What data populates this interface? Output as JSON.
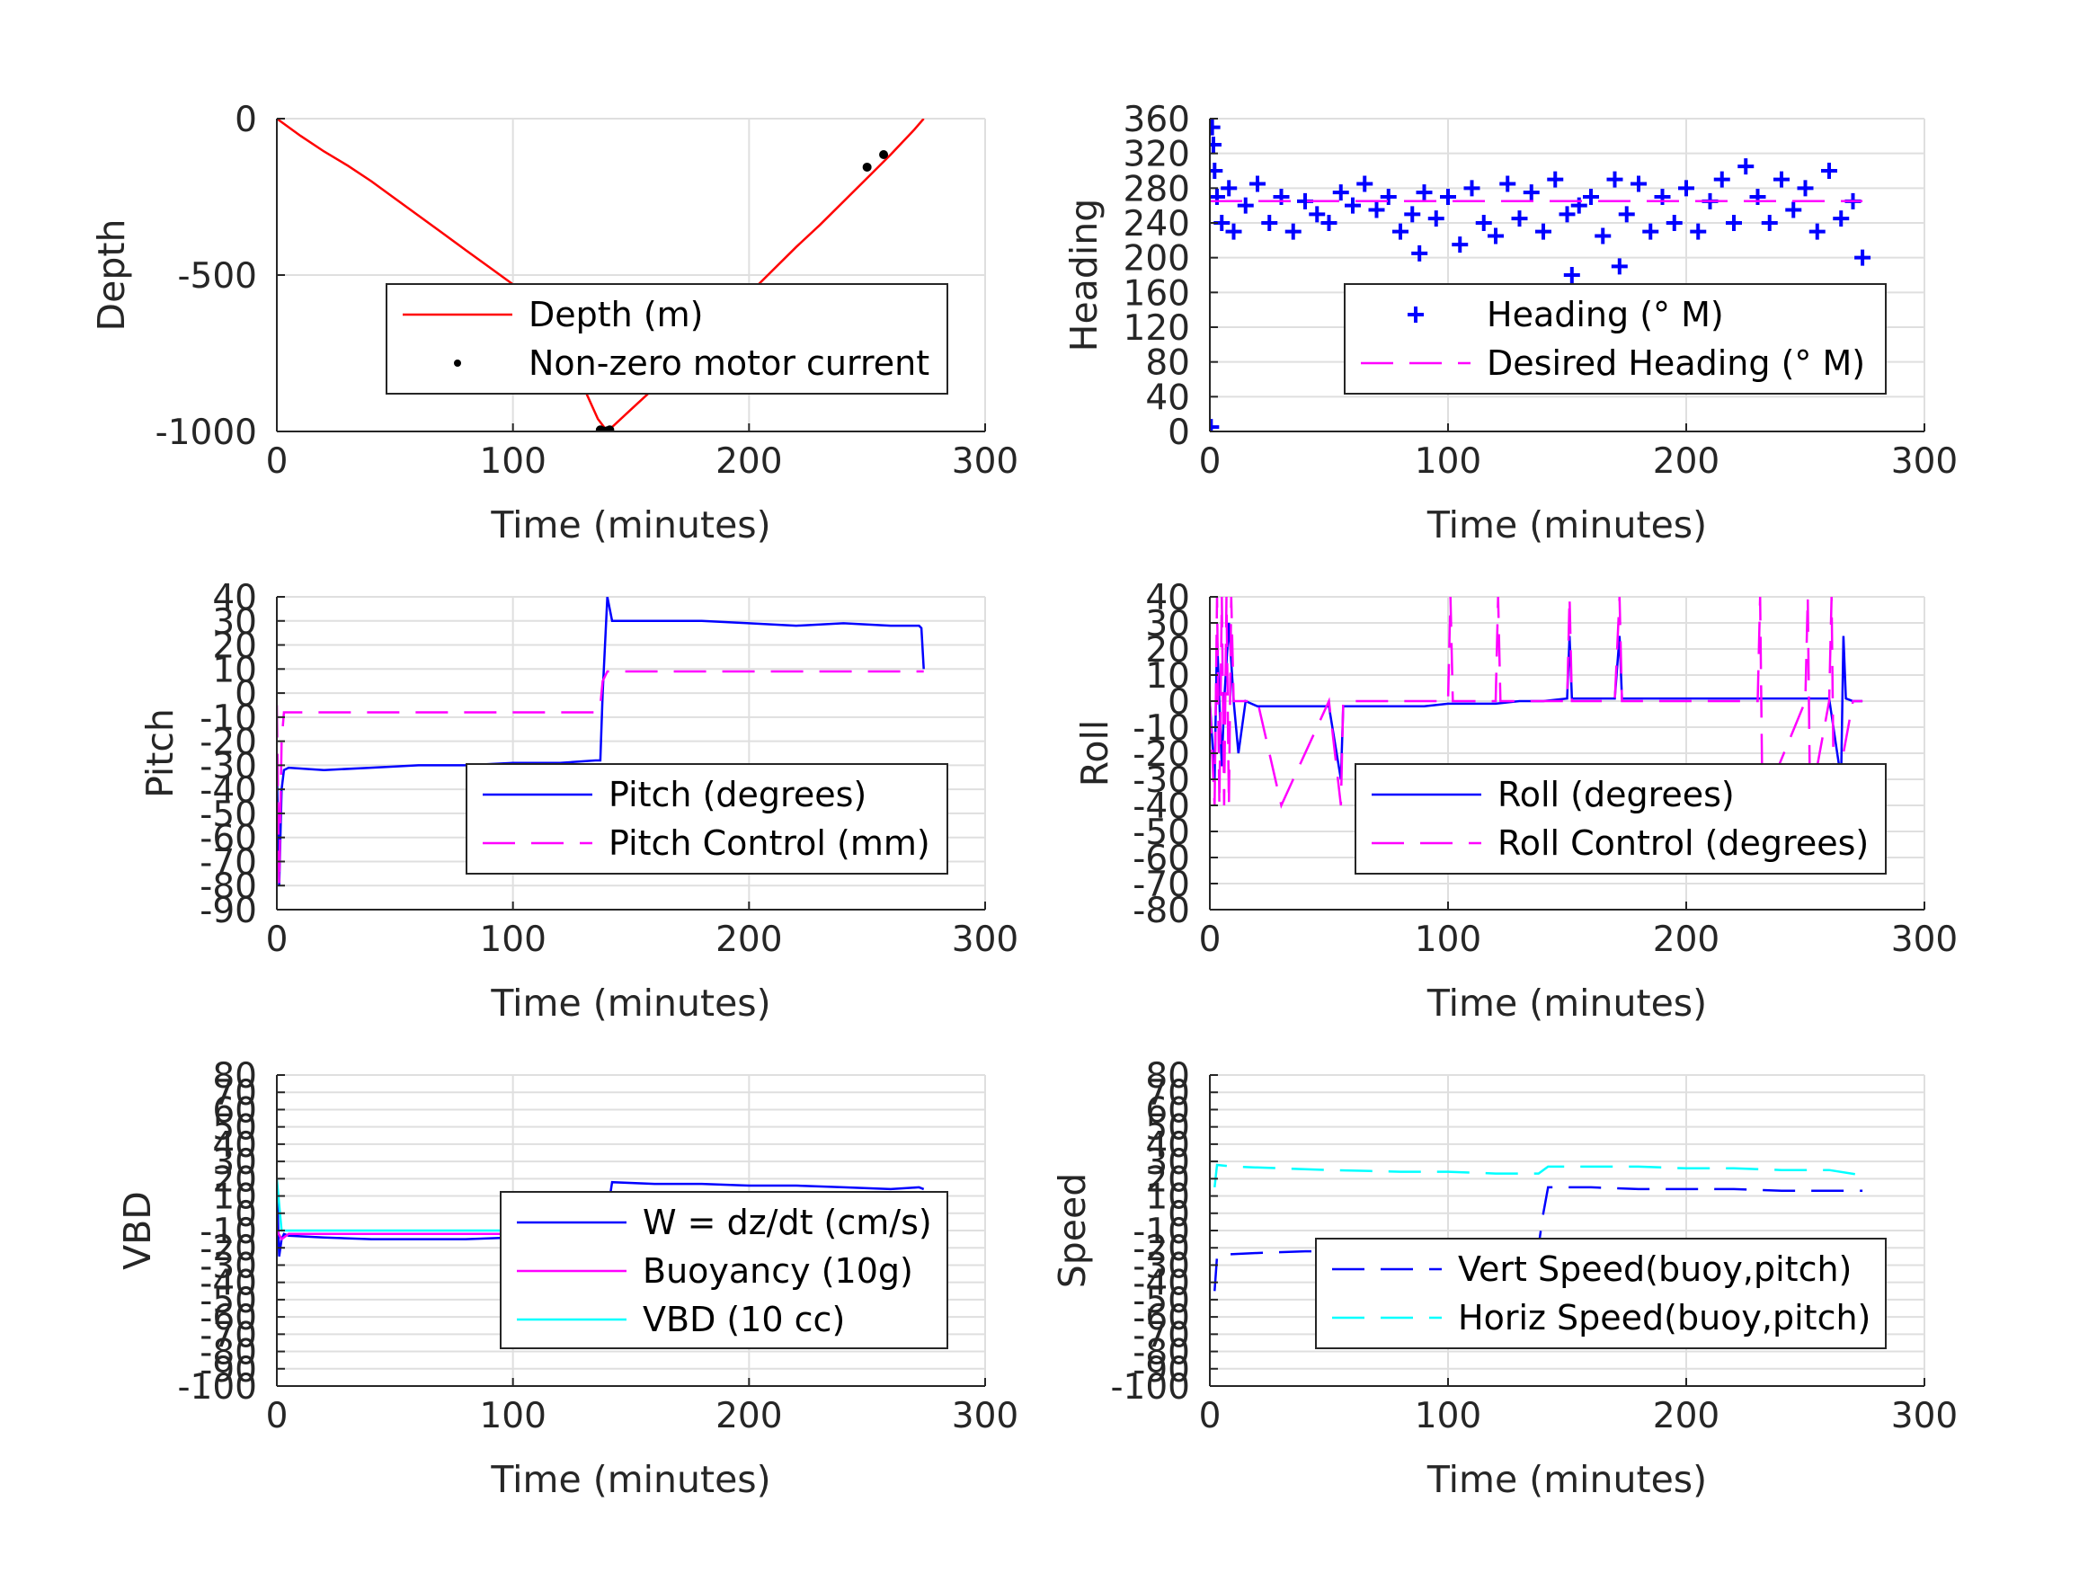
{
  "charts": [
    {
      "id": "depth",
      "ylabel": "Depth",
      "xlabel": "Time (minutes)",
      "xlim": [
        0,
        300
      ],
      "ylim": [
        -1000,
        0
      ],
      "xticks": [
        0,
        100,
        200,
        300
      ],
      "yticks": [
        -1000,
        -500,
        0
      ],
      "legend": [
        {
          "label": "Depth (m)",
          "style": "solid",
          "color": "#ff0000"
        },
        {
          "label": "Non-zero motor current",
          "style": "dot",
          "color": "#000000"
        }
      ]
    },
    {
      "id": "heading",
      "ylabel": "Heading",
      "xlabel": "Time (minutes)",
      "xlim": [
        0,
        300
      ],
      "ylim": [
        0,
        360
      ],
      "xticks": [
        0,
        100,
        200,
        300
      ],
      "yticks": [
        0,
        40,
        80,
        120,
        160,
        200,
        240,
        280,
        320,
        360
      ],
      "legend": [
        {
          "label": "Heading (° M)",
          "style": "plus",
          "color": "#0000ff"
        },
        {
          "label": "Desired Heading (° M)",
          "style": "dashed",
          "color": "#ff00ff"
        }
      ]
    },
    {
      "id": "pitch",
      "ylabel": "Pitch",
      "xlabel": "Time (minutes)",
      "xlim": [
        0,
        300
      ],
      "ylim": [
        -90,
        40
      ],
      "xticks": [
        0,
        100,
        200,
        300
      ],
      "yticks": [
        -90,
        -80,
        -70,
        -60,
        -50,
        -40,
        -30,
        -20,
        -10,
        0,
        10,
        20,
        30,
        40
      ],
      "legend": [
        {
          "label": "Pitch (degrees)",
          "style": "solid",
          "color": "#0000ff"
        },
        {
          "label": "Pitch Control (mm)",
          "style": "dashed",
          "color": "#ff00ff"
        }
      ]
    },
    {
      "id": "roll",
      "ylabel": "Roll",
      "xlabel": "Time (minutes)",
      "xlim": [
        0,
        300
      ],
      "ylim": [
        -80,
        40
      ],
      "xticks": [
        0,
        100,
        200,
        300
      ],
      "yticks": [
        -80,
        -70,
        -60,
        -50,
        -40,
        -30,
        -20,
        -10,
        0,
        10,
        20,
        30,
        40
      ],
      "legend": [
        {
          "label": "Roll (degrees)",
          "style": "solid",
          "color": "#0000ff"
        },
        {
          "label": "Roll Control (degrees)",
          "style": "dashed",
          "color": "#ff00ff"
        }
      ]
    },
    {
      "id": "vbd",
      "ylabel": "VBD",
      "xlabel": "Time (minutes)",
      "xlim": [
        0,
        300
      ],
      "ylim": [
        -100,
        80
      ],
      "xticks": [
        0,
        100,
        200,
        300
      ],
      "yticks": [
        -100,
        -90,
        -80,
        -70,
        -60,
        -50,
        -40,
        -30,
        -20,
        -10,
        0,
        10,
        20,
        30,
        40,
        50,
        60,
        70,
        80
      ],
      "legend": [
        {
          "label": "W = dz/dt (cm/s)",
          "style": "solid",
          "color": "#0000ff"
        },
        {
          "label": "Buoyancy (10g)",
          "style": "solid",
          "color": "#ff00ff"
        },
        {
          "label": "VBD (10 cc)",
          "style": "solid",
          "color": "#00ffff"
        }
      ]
    },
    {
      "id": "speed",
      "ylabel": "Speed",
      "xlabel": "Time (minutes)",
      "xlim": [
        0,
        300
      ],
      "ylim": [
        -100,
        80
      ],
      "xticks": [
        0,
        100,
        200,
        300
      ],
      "yticks": [
        -100,
        -90,
        -80,
        -70,
        -60,
        -50,
        -40,
        -30,
        -20,
        -10,
        0,
        10,
        20,
        30,
        40,
        50,
        60,
        70,
        80
      ],
      "legend": [
        {
          "label": "Vert Speed(buoy,pitch)",
          "style": "dashed",
          "color": "#0000ff"
        },
        {
          "label": "Horiz Speed(buoy,pitch)",
          "style": "dashed",
          "color": "#00ffff"
        }
      ]
    }
  ],
  "chart_data": [
    {
      "type": "line",
      "ylabel": "Depth",
      "xlabel": "Time (minutes)",
      "xlim": [
        0,
        300
      ],
      "ylim": [
        -1000,
        0
      ],
      "grid": true,
      "legend_position": "lower-right",
      "series": [
        {
          "name": "Depth (m)",
          "color": "#ff0000",
          "style": "solid",
          "x": [
            0,
            10,
            20,
            30,
            40,
            50,
            60,
            70,
            80,
            90,
            100,
            110,
            120,
            130,
            136,
            140,
            150,
            160,
            170,
            180,
            190,
            200,
            210,
            220,
            230,
            240,
            250,
            260,
            270,
            274
          ],
          "y": [
            0,
            -55,
            -105,
            -150,
            -200,
            -255,
            -310,
            -365,
            -420,
            -475,
            -530,
            -590,
            -700,
            -860,
            -960,
            -1000,
            -930,
            -860,
            -790,
            -715,
            -640,
            -560,
            -485,
            -410,
            -340,
            -265,
            -190,
            -115,
            -35,
            0
          ]
        },
        {
          "name": "Non-zero motor current",
          "color": "#000000",
          "style": "dot",
          "x": [
            137,
            138,
            139,
            140,
            141,
            250,
            257
          ],
          "y": [
            -995,
            -998,
            -1000,
            -998,
            -995,
            -155,
            -115
          ]
        }
      ]
    },
    {
      "type": "scatter",
      "ylabel": "Heading",
      "xlabel": "Time (minutes)",
      "xlim": [
        0,
        300
      ],
      "ylim": [
        0,
        360
      ],
      "grid": true,
      "legend_position": "lower-right",
      "series": [
        {
          "name": "Heading (° M)",
          "color": "#0000ff",
          "marker": "+",
          "x": [
            0.5,
            1,
            1.5,
            2,
            3,
            5,
            8,
            10,
            15,
            20,
            25,
            30,
            35,
            40,
            45,
            50,
            55,
            60,
            65,
            70,
            75,
            80,
            85,
            88,
            90,
            95,
            100,
            105,
            110,
            115,
            120,
            125,
            130,
            135,
            140,
            145,
            150,
            152,
            155,
            160,
            165,
            170,
            172,
            175,
            180,
            185,
            190,
            195,
            200,
            205,
            210,
            215,
            220,
            225,
            230,
            235,
            240,
            245,
            250,
            255,
            260,
            265,
            270,
            274
          ],
          "y": [
            5,
            350,
            330,
            300,
            270,
            240,
            280,
            230,
            260,
            285,
            240,
            270,
            230,
            265,
            250,
            240,
            275,
            260,
            285,
            255,
            270,
            230,
            250,
            205,
            275,
            245,
            270,
            215,
            280,
            240,
            225,
            285,
            245,
            275,
            230,
            290,
            250,
            180,
            260,
            270,
            225,
            290,
            190,
            250,
            285,
            230,
            270,
            240,
            280,
            230,
            265,
            290,
            240,
            305,
            270,
            240,
            290,
            255,
            280,
            230,
            300,
            245,
            265,
            200
          ]
        },
        {
          "name": "Desired Heading (° M)",
          "color": "#ff00ff",
          "style": "dashed",
          "x": [
            0,
            274
          ],
          "y": [
            265,
            265
          ]
        }
      ]
    },
    {
      "type": "line",
      "ylabel": "Pitch",
      "xlabel": "Time (minutes)",
      "xlim": [
        0,
        300
      ],
      "ylim": [
        -90,
        40
      ],
      "grid": true,
      "legend_position": "lower-right",
      "series": [
        {
          "name": "Pitch (degrees)",
          "color": "#0000ff",
          "style": "solid",
          "x": [
            0,
            1,
            2,
            3,
            5,
            20,
            40,
            60,
            80,
            100,
            120,
            135,
            137,
            138,
            139,
            140,
            142,
            160,
            180,
            200,
            220,
            240,
            260,
            272,
            273,
            274
          ],
          "y": [
            -30,
            -80,
            -40,
            -32,
            -31,
            -32,
            -31,
            -30,
            -30,
            -29,
            -29,
            -28,
            -28,
            0,
            20,
            40,
            30,
            30,
            30,
            29,
            28,
            29,
            28,
            28,
            27,
            10
          ]
        },
        {
          "name": "Pitch Control (mm)",
          "color": "#ff00ff",
          "style": "dashed",
          "x": [
            0,
            1,
            2,
            3,
            136,
            137,
            138,
            140,
            274
          ],
          "y": [
            -5,
            -80,
            -20,
            -8,
            -8,
            -5,
            5,
            9,
            9
          ]
        }
      ]
    },
    {
      "type": "line",
      "ylabel": "Roll",
      "xlabel": "Time (minutes)",
      "xlim": [
        0,
        300
      ],
      "ylim": [
        -80,
        40
      ],
      "grid": true,
      "legend_position": "lower-right",
      "series": [
        {
          "name": "Roll (degrees)",
          "color": "#0000ff",
          "style": "solid",
          "x": [
            0,
            2,
            3,
            4,
            5,
            6,
            8,
            10,
            12,
            15,
            20,
            30,
            40,
            50,
            55,
            56,
            57,
            60,
            70,
            80,
            90,
            100,
            110,
            120,
            130,
            140,
            150,
            151,
            152,
            160,
            170,
            172,
            173,
            180,
            190,
            200,
            210,
            220,
            230,
            240,
            250,
            260,
            265,
            266,
            267,
            270,
            274
          ],
          "y": [
            0,
            -30,
            25,
            0,
            -25,
            0,
            30,
            0,
            -20,
            0,
            -2,
            -2,
            -2,
            -2,
            -30,
            -2,
            -2,
            -2,
            -2,
            -2,
            -2,
            -1,
            -1,
            -1,
            0,
            0,
            1,
            25,
            1,
            1,
            1,
            25,
            1,
            1,
            1,
            1,
            1,
            1,
            1,
            1,
            1,
            1,
            -30,
            25,
            1,
            0,
            0
          ]
        },
        {
          "name": "Roll Control (degrees)",
          "color": "#ff00ff",
          "style": "dashed",
          "x": [
            0,
            2,
            3,
            4,
            5,
            6,
            7,
            8,
            9,
            10,
            20,
            30,
            50,
            55,
            56,
            57,
            70,
            90,
            100,
            101,
            102,
            120,
            121,
            122,
            140,
            150,
            151,
            152,
            170,
            172,
            173,
            190,
            230,
            231,
            232,
            250,
            251,
            252,
            260,
            261,
            262,
            270,
            274
          ],
          "y": [
            0,
            -40,
            40,
            -40,
            40,
            -40,
            40,
            -40,
            40,
            0,
            0,
            -40,
            0,
            -40,
            0,
            0,
            0,
            0,
            0,
            40,
            0,
            0,
            40,
            0,
            0,
            0,
            40,
            0,
            0,
            40,
            0,
            0,
            0,
            40,
            -40,
            0,
            40,
            -40,
            0,
            40,
            -40,
            0,
            0
          ]
        }
      ]
    },
    {
      "type": "line",
      "ylabel": "VBD",
      "xlabel": "Time (minutes)",
      "xlim": [
        0,
        300
      ],
      "ylim": [
        -100,
        80
      ],
      "grid": true,
      "legend_position": "lower-right",
      "series": [
        {
          "name": "W = dz/dt (cm/s)",
          "color": "#0000ff",
          "style": "solid",
          "x": [
            0,
            1,
            2,
            3,
            5,
            20,
            40,
            60,
            80,
            100,
            120,
            138,
            140,
            142,
            160,
            180,
            200,
            220,
            240,
            260,
            272,
            274
          ],
          "y": [
            15,
            -25,
            -15,
            -12,
            -13,
            -14,
            -15,
            -15,
            -15,
            -14,
            -14,
            -14,
            0,
            18,
            17,
            17,
            16,
            16,
            15,
            14,
            15,
            14
          ]
        },
        {
          "name": "Buoyancy (10g)",
          "color": "#ff00ff",
          "style": "solid",
          "x": [
            0,
            2,
            5,
            100,
            138,
            140,
            200,
            260,
            274
          ],
          "y": [
            -10,
            -15,
            -12,
            -12,
            -11,
            10,
            10,
            10,
            8
          ]
        },
        {
          "name": "VBD (10 cc)",
          "color": "#00ffff",
          "style": "solid",
          "x": [
            0,
            1,
            2,
            5,
            100,
            138,
            140,
            200,
            260,
            274
          ],
          "y": [
            20,
            5,
            -10,
            -10,
            -10,
            -10,
            12,
            12,
            12,
            11
          ]
        }
      ]
    },
    {
      "type": "line",
      "ylabel": "Speed",
      "xlabel": "Time (minutes)",
      "xlim": [
        0,
        300
      ],
      "ylim": [
        -100,
        80
      ],
      "grid": true,
      "legend_position": "lower-right",
      "series": [
        {
          "name": "Vert Speed(buoy,pitch)",
          "color": "#0000ff",
          "style": "dashed",
          "x": [
            2,
            3,
            5,
            20,
            40,
            60,
            80,
            100,
            120,
            135,
            138,
            140,
            142,
            160,
            180,
            200,
            220,
            240,
            260,
            274
          ],
          "y": [
            -45,
            -25,
            -24,
            -23,
            -22,
            -22,
            -21,
            -21,
            -20,
            -19,
            -19,
            0,
            15,
            15,
            14,
            14,
            14,
            13,
            13,
            13
          ]
        },
        {
          "name": "Horiz Speed(buoy,pitch)",
          "color": "#00ffff",
          "style": "dashed",
          "x": [
            2,
            3,
            10,
            30,
            50,
            80,
            100,
            120,
            135,
            138,
            140,
            142,
            160,
            180,
            200,
            220,
            240,
            260,
            274
          ],
          "y": [
            15,
            28,
            27,
            26,
            25,
            24,
            24,
            23,
            23,
            23,
            25,
            27,
            27,
            27,
            26,
            26,
            25,
            25,
            22
          ]
        }
      ]
    }
  ]
}
